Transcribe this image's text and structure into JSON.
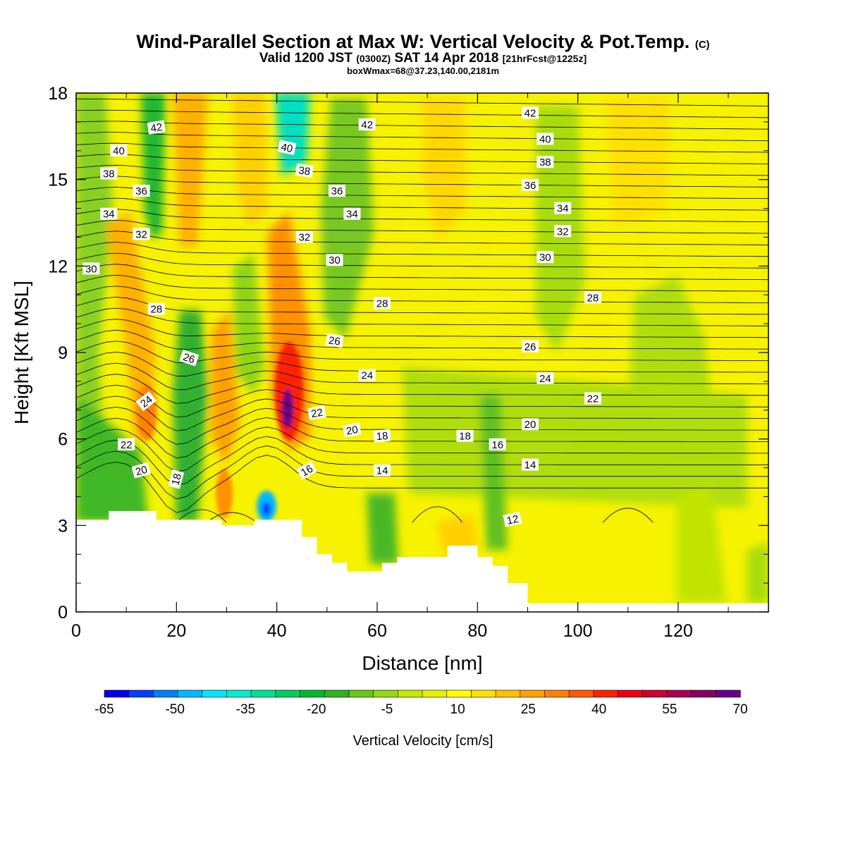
{
  "header": {
    "title": "Wind-Parallel Section at Max W: Vertical Velocity & Pot.Temp.",
    "copyright": "(C)",
    "valid_prefix": "Valid 1200 JST",
    "valid_utc": "(0300Z)",
    "valid_date": "SAT 14 Apr 2018",
    "forecast": "[21hrFcst@1225z]",
    "box_info": "boxWmax=68@37.23,140.00,2181m"
  },
  "chart_data": {
    "type": "heatmap",
    "xlabel": "Distance [nm]",
    "ylabel": "Height [Kft MSL]",
    "xlim": [
      0,
      138
    ],
    "ylim": [
      0,
      18
    ],
    "x_ticks": [
      0,
      20,
      40,
      60,
      80,
      100,
      120
    ],
    "y_ticks": [
      0,
      3,
      6,
      9,
      12,
      15,
      18
    ],
    "grid": false,
    "field": "Vertical Velocity [cm/s]",
    "contour_field": "Potential temperature (C)",
    "colorbar": {
      "title": "Vertical Velocity [cm/s]",
      "labels": [
        "-65",
        "-50",
        "-35",
        "-20",
        "-5",
        "10",
        "25",
        "40",
        "55",
        "70"
      ],
      "colors": [
        "#0000ee",
        "#0040ff",
        "#0080ff",
        "#00b8ff",
        "#00e6ff",
        "#00eecc",
        "#00e090",
        "#00cc60",
        "#00b830",
        "#30b020",
        "#68c818",
        "#98d810",
        "#c8e800",
        "#e8f000",
        "#ffff00",
        "#ffe000",
        "#ffc000",
        "#ffa000",
        "#ff8000",
        "#ff5a00",
        "#ff2000",
        "#ee0010",
        "#cc0030",
        "#aa0050",
        "#880060",
        "#660088"
      ]
    },
    "terrain_kft": [
      [
        0,
        3.2
      ],
      [
        6.5,
        3.2
      ],
      [
        6.5,
        3.5
      ],
      [
        16,
        3.5
      ],
      [
        16,
        3.2
      ],
      [
        29,
        3.2
      ],
      [
        29,
        3
      ],
      [
        35.5,
        3
      ],
      [
        35.5,
        3.2
      ],
      [
        45,
        3.2
      ],
      [
        45,
        2.6
      ],
      [
        48,
        2.6
      ],
      [
        48,
        2
      ],
      [
        51,
        2
      ],
      [
        51,
        1.7
      ],
      [
        54,
        1.7
      ],
      [
        54,
        1.4
      ],
      [
        61,
        1.4
      ],
      [
        61,
        1.7
      ],
      [
        64,
        1.7
      ],
      [
        64,
        1.9
      ],
      [
        74,
        1.9
      ],
      [
        74,
        2.3
      ],
      [
        80,
        2.3
      ],
      [
        80,
        1.9
      ],
      [
        83,
        1.9
      ],
      [
        83,
        1.6
      ],
      [
        86,
        1.6
      ],
      [
        86,
        1
      ],
      [
        90,
        1
      ],
      [
        90,
        0.3
      ],
      [
        138,
        0.3
      ]
    ],
    "updraft_columns": [
      {
        "x": 3,
        "w": -15,
        "note": "lower-left downdraft"
      },
      {
        "x": 14,
        "w": 25
      },
      {
        "x": 19,
        "w": 35
      },
      {
        "x": 27.5,
        "w": 22
      },
      {
        "x": 42,
        "w": 68
      },
      {
        "x": 39,
        "w": -55
      },
      {
        "x": 54,
        "w": -15
      },
      {
        "x": 72,
        "w": 15
      },
      {
        "x": 94,
        "w": -10
      }
    ],
    "contour_labels": [
      {
        "text": "42",
        "x": 16,
        "y": 16.8,
        "rot": -8
      },
      {
        "text": "40",
        "x": 8.5,
        "y": 16,
        "rot": 0
      },
      {
        "text": "38",
        "x": 6.5,
        "y": 15.2,
        "rot": 0
      },
      {
        "text": "36",
        "x": 13,
        "y": 14.6,
        "rot": 0
      },
      {
        "text": "34",
        "x": 6.5,
        "y": 13.8,
        "rot": 0
      },
      {
        "text": "32",
        "x": 13,
        "y": 13.1,
        "rot": 0
      },
      {
        "text": "30",
        "x": 3,
        "y": 11.9,
        "rot": 0
      },
      {
        "text": "28",
        "x": 16,
        "y": 10.5,
        "rot": 0
      },
      {
        "text": "26",
        "x": 22.5,
        "y": 8.8,
        "rot": 18
      },
      {
        "text": "24",
        "x": 14,
        "y": 7.3,
        "rot": -38
      },
      {
        "text": "22",
        "x": 10,
        "y": 5.8,
        "rot": 0
      },
      {
        "text": "20",
        "x": 13,
        "y": 4.9,
        "rot": -15
      },
      {
        "text": "18",
        "x": 20,
        "y": 4.6,
        "rot": -75
      },
      {
        "text": "40",
        "x": 42,
        "y": 16.1,
        "rot": 12
      },
      {
        "text": "38",
        "x": 45.5,
        "y": 15.3,
        "rot": 8
      },
      {
        "text": "36",
        "x": 52,
        "y": 14.6,
        "rot": 0
      },
      {
        "text": "34",
        "x": 55,
        "y": 13.8,
        "rot": 0
      },
      {
        "text": "32",
        "x": 45.5,
        "y": 13,
        "rot": 0
      },
      {
        "text": "30",
        "x": 51.5,
        "y": 12.2,
        "rot": 0
      },
      {
        "text": "28",
        "x": 61,
        "y": 10.7,
        "rot": 0
      },
      {
        "text": "26",
        "x": 51.5,
        "y": 9.4,
        "rot": 8
      },
      {
        "text": "24",
        "x": 58,
        "y": 8.2,
        "rot": 0
      },
      {
        "text": "22",
        "x": 48,
        "y": 6.9,
        "rot": -10
      },
      {
        "text": "20",
        "x": 55,
        "y": 6.3,
        "rot": -10
      },
      {
        "text": "18",
        "x": 61,
        "y": 6.1,
        "rot": -5
      },
      {
        "text": "16",
        "x": 46,
        "y": 4.9,
        "rot": -30
      },
      {
        "text": "14",
        "x": 61,
        "y": 4.9,
        "rot": 0
      },
      {
        "text": "42",
        "x": 58,
        "y": 16.9,
        "rot": 0
      },
      {
        "text": "42",
        "x": 90.5,
        "y": 17.3,
        "rot": 0
      },
      {
        "text": "40",
        "x": 93.5,
        "y": 16.4,
        "rot": 0
      },
      {
        "text": "38",
        "x": 93.5,
        "y": 15.6,
        "rot": 0
      },
      {
        "text": "36",
        "x": 90.5,
        "y": 14.8,
        "rot": 0
      },
      {
        "text": "34",
        "x": 97,
        "y": 14,
        "rot": 0
      },
      {
        "text": "32",
        "x": 97,
        "y": 13.2,
        "rot": 0
      },
      {
        "text": "30",
        "x": 93.5,
        "y": 12.3,
        "rot": 0
      },
      {
        "text": "28",
        "x": 103,
        "y": 10.9,
        "rot": 0
      },
      {
        "text": "26",
        "x": 90.5,
        "y": 9.2,
        "rot": 0
      },
      {
        "text": "24",
        "x": 93.5,
        "y": 8.1,
        "rot": 0
      },
      {
        "text": "22",
        "x": 103,
        "y": 7.4,
        "rot": 0
      },
      {
        "text": "20",
        "x": 90.5,
        "y": 6.5,
        "rot": 0
      },
      {
        "text": "18",
        "x": 77.5,
        "y": 6.1,
        "rot": 0
      },
      {
        "text": "16",
        "x": 84,
        "y": 5.8,
        "rot": 0
      },
      {
        "text": "14",
        "x": 90.5,
        "y": 5.1,
        "rot": 0
      },
      {
        "text": "12",
        "x": 87,
        "y": 3.2,
        "rot": -12
      }
    ]
  }
}
